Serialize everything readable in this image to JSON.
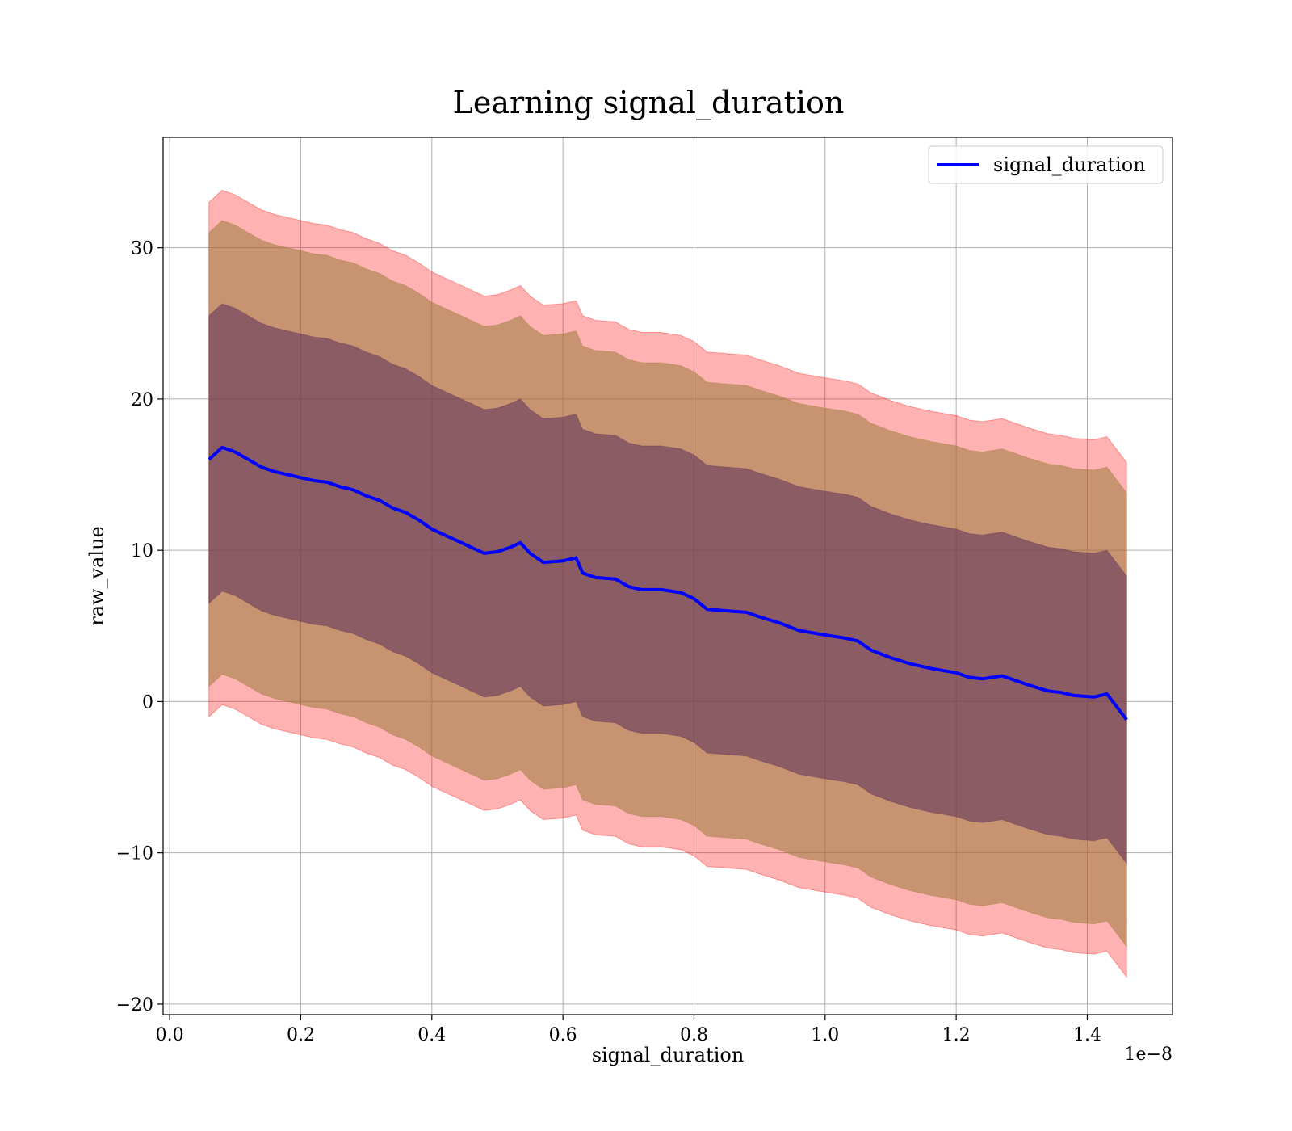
{
  "chart_data": {
    "type": "line",
    "title": "Learning signal_duration",
    "xlabel": "signal_duration",
    "ylabel": "raw_value",
    "x_offset_text": "1e−8",
    "xlim": [
      -0.01,
      1.53
    ],
    "ylim": [
      -20.7,
      37.3
    ],
    "x_ticks": [
      0.0,
      0.2,
      0.4,
      0.6,
      0.8,
      1.0,
      1.2,
      1.4
    ],
    "x_tick_labels": [
      "0.0",
      "0.2",
      "0.4",
      "0.6",
      "0.8",
      "1.0",
      "1.2",
      "1.4"
    ],
    "y_ticks": [
      -20,
      -10,
      0,
      10,
      20,
      30
    ],
    "y_tick_labels": [
      "−20",
      "−10",
      "0",
      "10",
      "20",
      "30"
    ],
    "grid": true,
    "legend": {
      "position": "top-right",
      "entries": [
        "signal_duration"
      ]
    },
    "colors": {
      "mean_line": "#0000ff",
      "band_outer": "#ff0000",
      "band_middle": "#9a7a3a",
      "band_inner": "#5a2f5a"
    },
    "series": [
      {
        "name": "signal_duration",
        "x": [
          0.06,
          0.08,
          0.1,
          0.12,
          0.14,
          0.16,
          0.18,
          0.2,
          0.22,
          0.24,
          0.26,
          0.28,
          0.3,
          0.32,
          0.34,
          0.36,
          0.38,
          0.4,
          0.42,
          0.44,
          0.46,
          0.48,
          0.5,
          0.52,
          0.535,
          0.55,
          0.57,
          0.6,
          0.62,
          0.63,
          0.65,
          0.68,
          0.7,
          0.72,
          0.75,
          0.78,
          0.8,
          0.82,
          0.85,
          0.88,
          0.9,
          0.93,
          0.96,
          1.0,
          1.03,
          1.05,
          1.07,
          1.1,
          1.13,
          1.16,
          1.2,
          1.22,
          1.24,
          1.27,
          1.29,
          1.31,
          1.34,
          1.36,
          1.38,
          1.41,
          1.43,
          1.46
        ],
        "y": [
          16.0,
          16.8,
          16.5,
          16.0,
          15.5,
          15.2,
          15.0,
          14.8,
          14.6,
          14.5,
          14.2,
          14.0,
          13.6,
          13.3,
          12.8,
          12.5,
          12.0,
          11.4,
          11.0,
          10.6,
          10.2,
          9.8,
          9.9,
          10.2,
          10.5,
          9.8,
          9.2,
          9.3,
          9.5,
          8.5,
          8.2,
          8.1,
          7.6,
          7.4,
          7.4,
          7.2,
          6.8,
          6.1,
          6.0,
          5.9,
          5.6,
          5.2,
          4.7,
          4.4,
          4.2,
          4.0,
          3.4,
          2.9,
          2.5,
          2.2,
          1.9,
          1.6,
          1.5,
          1.7,
          1.4,
          1.1,
          0.7,
          0.6,
          0.4,
          0.3,
          0.5,
          -1.2
        ]
      }
    ],
    "bands": [
      {
        "name": "outer",
        "lower_offset": -17.0,
        "upper_offset": 17.0
      },
      {
        "name": "middle",
        "lower_offset": -15.0,
        "upper_offset": 15.0
      },
      {
        "name": "inner",
        "lower_offset": -9.5,
        "upper_offset": 9.5
      }
    ]
  }
}
